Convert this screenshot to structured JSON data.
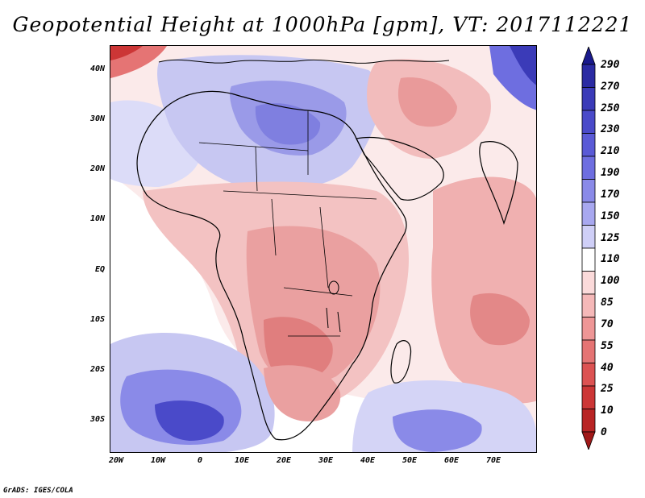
{
  "title": "Geopotential Height at 1000hPa [gpm], VT: 2017112221",
  "credit": "GrADS: IGES/COLA",
  "map": {
    "region": "Africa and Indian Ocean",
    "lat_labels": [
      "40N",
      "30N",
      "20N",
      "10N",
      "EQ",
      "10S",
      "20S",
      "30S"
    ],
    "lon_labels": [
      "20W",
      "10W",
      "0",
      "10E",
      "20E",
      "30E",
      "40E",
      "50E",
      "60E",
      "70E"
    ]
  },
  "colorbar": {
    "labels": [
      "290",
      "270",
      "250",
      "230",
      "210",
      "190",
      "170",
      "150",
      "125",
      "110",
      "100",
      "85",
      "70",
      "55",
      "40",
      "25",
      "10",
      "0"
    ],
    "colors": [
      "#1a1a8c",
      "#2b2ba3",
      "#3b3bb8",
      "#4a4ac9",
      "#5a5ad6",
      "#6e6ee0",
      "#8a8ae8",
      "#a8a8f0",
      "#cfcff7",
      "#ffffff",
      "#fbdada",
      "#f5b8b8",
      "#ee9696",
      "#e57474",
      "#dc5252",
      "#cc3636",
      "#b82424",
      "#a01818"
    ]
  }
}
